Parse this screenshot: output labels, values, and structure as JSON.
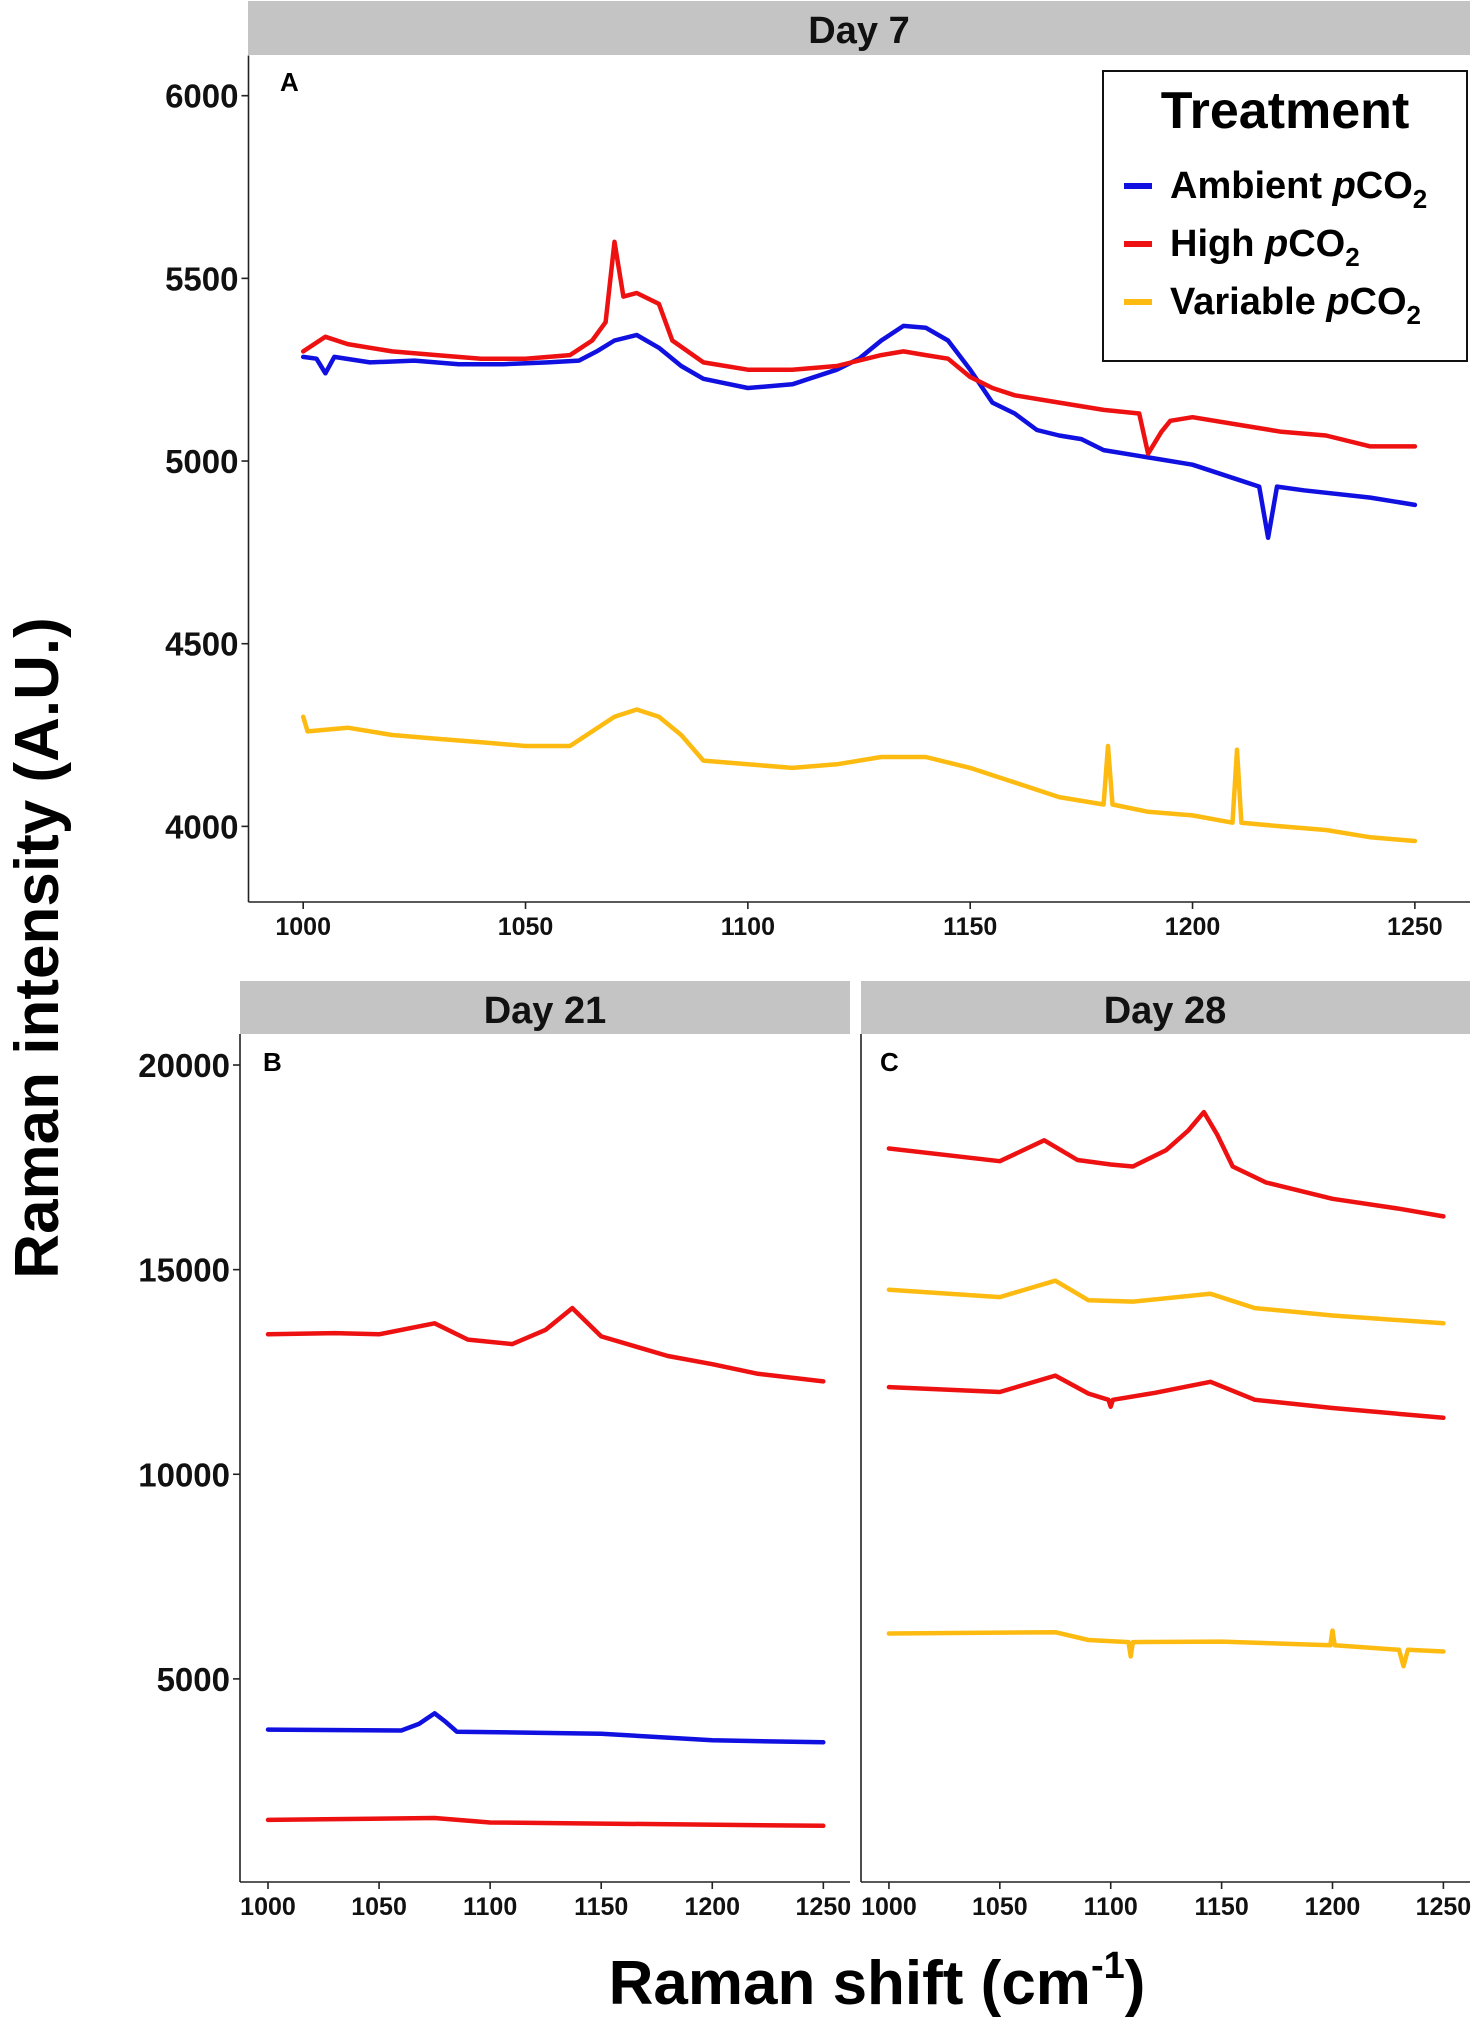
{
  "chart_data": {
    "type": "line",
    "ylabel": "Raman intensity (A.U.)",
    "xlabel": {
      "main": "Raman shift (cm",
      "sup": "-1",
      "close": ")"
    },
    "colors": {
      "ambient": "#1010e0",
      "high": "#ee1111",
      "variable": "#fdbb12"
    },
    "legend": {
      "title": "Treatment",
      "placement": "top-right",
      "items": [
        {
          "key": "ambient",
          "name": "Ambient ",
          "p": "p",
          "co": "CO",
          "sub": "2"
        },
        {
          "key": "high",
          "name": "High ",
          "p": "p",
          "co": "CO",
          "sub": "2"
        },
        {
          "key": "variable",
          "name": "Variable ",
          "p": "p",
          "co": "CO",
          "sub": "2"
        }
      ]
    },
    "panels": [
      {
        "id": "A",
        "strip": "Day 7",
        "xlim": [
          987.7,
          1262.4
        ],
        "ylim": [
          3793,
          6110
        ],
        "xticks": [
          1000,
          1050,
          1100,
          1150,
          1200,
          1250
        ],
        "yticks": [
          4000,
          4500,
          5000,
          5500,
          6000
        ],
        "series": [
          {
            "treatment": "ambient",
            "points": [
              [
                1000,
                5285
              ],
              [
                1003,
                5280
              ],
              [
                1005,
                5240
              ],
              [
                1007,
                5285
              ],
              [
                1015,
                5270
              ],
              [
                1025,
                5275
              ],
              [
                1035,
                5265
              ],
              [
                1045,
                5265
              ],
              [
                1055,
                5270
              ],
              [
                1062,
                5275
              ],
              [
                1066,
                5300
              ],
              [
                1070,
                5330
              ],
              [
                1075,
                5345
              ],
              [
                1080,
                5310
              ],
              [
                1085,
                5260
              ],
              [
                1090,
                5225
              ],
              [
                1100,
                5200
              ],
              [
                1110,
                5210
              ],
              [
                1120,
                5250
              ],
              [
                1125,
                5280
              ],
              [
                1130,
                5330
              ],
              [
                1135,
                5370
              ],
              [
                1140,
                5365
              ],
              [
                1145,
                5330
              ],
              [
                1150,
                5250
              ],
              [
                1155,
                5160
              ],
              [
                1160,
                5130
              ],
              [
                1165,
                5085
              ],
              [
                1170,
                5070
              ],
              [
                1175,
                5060
              ],
              [
                1180,
                5030
              ],
              [
                1190,
                5010
              ],
              [
                1200,
                4990
              ],
              [
                1210,
                4950
              ],
              [
                1215,
                4930
              ],
              [
                1217,
                4790
              ],
              [
                1219,
                4930
              ],
              [
                1225,
                4920
              ],
              [
                1240,
                4900
              ],
              [
                1250,
                4880
              ]
            ]
          },
          {
            "treatment": "high",
            "points": [
              [
                1000,
                5300
              ],
              [
                1005,
                5340
              ],
              [
                1010,
                5320
              ],
              [
                1020,
                5300
              ],
              [
                1030,
                5290
              ],
              [
                1040,
                5280
              ],
              [
                1050,
                5280
              ],
              [
                1060,
                5290
              ],
              [
                1065,
                5330
              ],
              [
                1068,
                5380
              ],
              [
                1070,
                5600
              ],
              [
                1072,
                5450
              ],
              [
                1075,
                5460
              ],
              [
                1080,
                5430
              ],
              [
                1083,
                5330
              ],
              [
                1090,
                5270
              ],
              [
                1100,
                5250
              ],
              [
                1110,
                5250
              ],
              [
                1120,
                5260
              ],
              [
                1130,
                5290
              ],
              [
                1135,
                5300
              ],
              [
                1140,
                5290
              ],
              [
                1145,
                5280
              ],
              [
                1150,
                5230
              ],
              [
                1155,
                5200
              ],
              [
                1160,
                5180
              ],
              [
                1170,
                5160
              ],
              [
                1180,
                5140
              ],
              [
                1188,
                5130
              ],
              [
                1190,
                5020
              ],
              [
                1193,
                5080
              ],
              [
                1195,
                5110
              ],
              [
                1200,
                5120
              ],
              [
                1210,
                5100
              ],
              [
                1220,
                5080
              ],
              [
                1230,
                5070
              ],
              [
                1240,
                5040
              ],
              [
                1250,
                5040
              ]
            ]
          },
          {
            "treatment": "variable",
            "points": [
              [
                1000,
                4300
              ],
              [
                1001,
                4260
              ],
              [
                1010,
                4270
              ],
              [
                1020,
                4250
              ],
              [
                1030,
                4240
              ],
              [
                1040,
                4230
              ],
              [
                1050,
                4220
              ],
              [
                1060,
                4220
              ],
              [
                1065,
                4260
              ],
              [
                1070,
                4300
              ],
              [
                1075,
                4320
              ],
              [
                1080,
                4300
              ],
              [
                1085,
                4250
              ],
              [
                1090,
                4180
              ],
              [
                1100,
                4170
              ],
              [
                1110,
                4160
              ],
              [
                1120,
                4170
              ],
              [
                1130,
                4190
              ],
              [
                1140,
                4190
              ],
              [
                1150,
                4160
              ],
              [
                1160,
                4120
              ],
              [
                1170,
                4080
              ],
              [
                1180,
                4060
              ],
              [
                1181,
                4220
              ],
              [
                1182,
                4060
              ],
              [
                1190,
                4040
              ],
              [
                1200,
                4030
              ],
              [
                1209,
                4010
              ],
              [
                1210,
                4210
              ],
              [
                1211,
                4010
              ],
              [
                1220,
                4000
              ],
              [
                1230,
                3990
              ],
              [
                1240,
                3970
              ],
              [
                1250,
                3960
              ]
            ]
          }
        ]
      },
      {
        "id": "B",
        "strip": "Day 21",
        "xlim": [
          987.4,
          1262
        ],
        "ylim": [
          37,
          20758
        ],
        "xticks": [
          1000,
          1050,
          1100,
          1150,
          1200,
          1250
        ],
        "yticks": [
          5000,
          10000,
          15000,
          20000
        ],
        "series": [
          {
            "treatment": "high",
            "points": [
              [
                1000,
                13420
              ],
              [
                1030,
                13450
              ],
              [
                1050,
                13420
              ],
              [
                1075,
                13690
              ],
              [
                1090,
                13290
              ],
              [
                1110,
                13180
              ],
              [
                1125,
                13530
              ],
              [
                1137,
                14060
              ],
              [
                1150,
                13370
              ],
              [
                1165,
                13130
              ],
              [
                1180,
                12890
              ],
              [
                1200,
                12690
              ],
              [
                1220,
                12460
              ],
              [
                1250,
                12270
              ]
            ]
          },
          {
            "treatment": "ambient",
            "points": [
              [
                1000,
                3760
              ],
              [
                1060,
                3740
              ],
              [
                1068,
                3900
              ],
              [
                1075,
                4160
              ],
              [
                1080,
                3950
              ],
              [
                1085,
                3710
              ],
              [
                1150,
                3660
              ],
              [
                1200,
                3500
              ],
              [
                1250,
                3450
              ]
            ]
          },
          {
            "treatment": "high",
            "points": [
              [
                1000,
                1555
              ],
              [
                1075,
                1600
              ],
              [
                1100,
                1490
              ],
              [
                1250,
                1410
              ]
            ]
          }
        ]
      },
      {
        "id": "C",
        "strip": "Day 28",
        "xlim": [
          987.4,
          1262
        ],
        "ylim": [
          37,
          20758
        ],
        "xticks": [
          1000,
          1050,
          1100,
          1150,
          1200,
          1250
        ],
        "yticks": [],
        "series": [
          {
            "treatment": "high",
            "points": [
              [
                1000,
                17960
              ],
              [
                1050,
                17650
              ],
              [
                1070,
                18160
              ],
              [
                1085,
                17680
              ],
              [
                1100,
                17570
              ],
              [
                1110,
                17520
              ],
              [
                1125,
                17920
              ],
              [
                1135,
                18400
              ],
              [
                1142,
                18850
              ],
              [
                1148,
                18300
              ],
              [
                1155,
                17520
              ],
              [
                1170,
                17130
              ],
              [
                1200,
                16730
              ],
              [
                1230,
                16490
              ],
              [
                1250,
                16300
              ]
            ]
          },
          {
            "treatment": "variable",
            "points": [
              [
                1000,
                14510
              ],
              [
                1050,
                14330
              ],
              [
                1075,
                14730
              ],
              [
                1090,
                14250
              ],
              [
                1110,
                14220
              ],
              [
                1145,
                14410
              ],
              [
                1165,
                14060
              ],
              [
                1200,
                13880
              ],
              [
                1250,
                13690
              ]
            ]
          },
          {
            "treatment": "high",
            "points": [
              [
                1000,
                12130
              ],
              [
                1050,
                12010
              ],
              [
                1075,
                12410
              ],
              [
                1090,
                11970
              ],
              [
                1099,
                11820
              ],
              [
                1100,
                11650
              ],
              [
                1101,
                11820
              ],
              [
                1120,
                11990
              ],
              [
                1145,
                12260
              ],
              [
                1165,
                11820
              ],
              [
                1200,
                11620
              ],
              [
                1250,
                11380
              ]
            ]
          },
          {
            "treatment": "variable",
            "points": [
              [
                1000,
                6110
              ],
              [
                1075,
                6140
              ],
              [
                1090,
                5950
              ],
              [
                1108,
                5900
              ],
              [
                1109,
                5550
              ],
              [
                1110,
                5900
              ],
              [
                1150,
                5910
              ],
              [
                1199,
                5820
              ],
              [
                1200,
                6180
              ],
              [
                1201,
                5820
              ],
              [
                1230,
                5710
              ],
              [
                1232,
                5310
              ],
              [
                1234,
                5710
              ],
              [
                1250,
                5670
              ]
            ]
          }
        ]
      }
    ]
  }
}
